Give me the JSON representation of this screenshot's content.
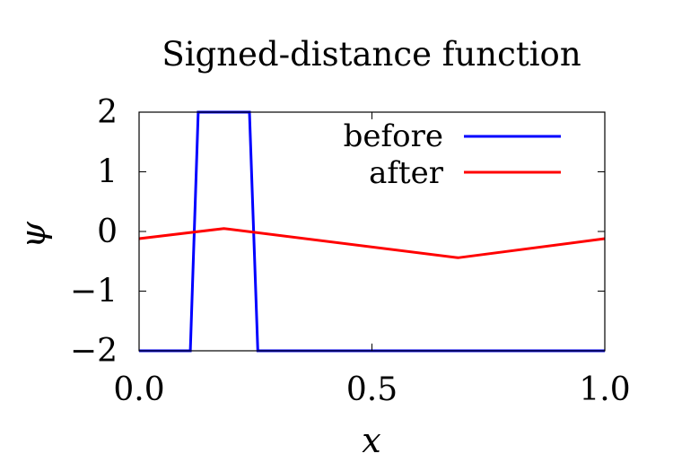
{
  "chart_data": {
    "type": "line",
    "title": "Signed-distance function",
    "xlabel": "x",
    "ylabel": "ψ",
    "xlim": [
      0.0,
      1.0
    ],
    "ylim": [
      -2,
      2
    ],
    "x_ticks": [
      0.0,
      0.5,
      1.0
    ],
    "x_tick_labels": [
      "0.0",
      "0.5",
      "1.0"
    ],
    "y_ticks": [
      -2,
      -1,
      0,
      1,
      2
    ],
    "y_tick_labels": [
      "−2",
      "−1",
      "0",
      "1",
      "2"
    ],
    "grid": false,
    "legend_position": "top-right",
    "series": [
      {
        "name": "before",
        "color": "#0000ff",
        "x": [
          0.0,
          0.11,
          0.127,
          0.237,
          0.255,
          1.0
        ],
        "y": [
          -2,
          -2,
          2,
          2,
          -2,
          -2
        ]
      },
      {
        "name": "after",
        "color": "#ff0000",
        "x": [
          0.0,
          0.182,
          0.685,
          1.0
        ],
        "y": [
          -0.12,
          0.05,
          -0.44,
          -0.12
        ]
      }
    ]
  }
}
